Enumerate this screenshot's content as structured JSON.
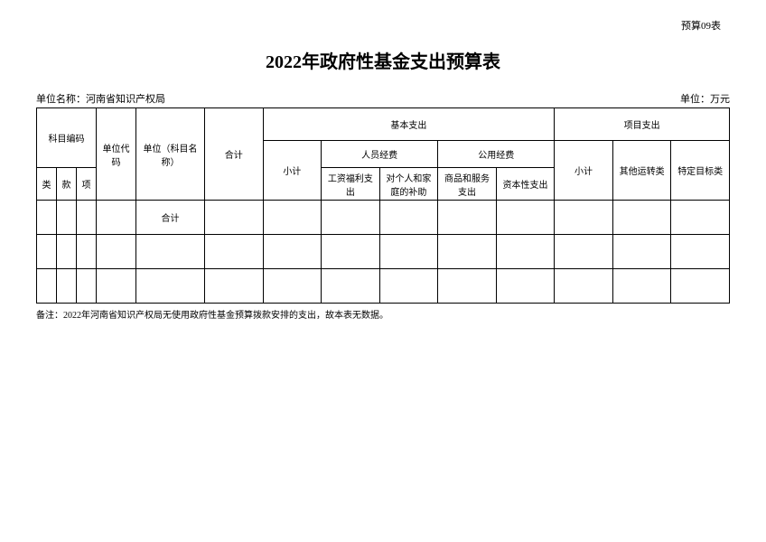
{
  "topLabel": "预算09表",
  "title": "2022年政府性基金支出预算表",
  "unitNameLabel": "单位名称：",
  "unitName": "河南省知识产权局",
  "currencyLabel": "单位：万元",
  "headers": {
    "subjectCode": "科目编码",
    "class": "类",
    "item": "款",
    "sub": "项",
    "unitCode": "单位代码",
    "unitSubjectName": "单位（科目名称）",
    "total": "合计",
    "basicExpense": "基本支出",
    "projectExpense": "项目支出",
    "subtotal": "小计",
    "personnelExpense": "人员经费",
    "publicExpense": "公用经费",
    "salaryWelfare": "工资福利支出",
    "personalFamily": "对个人和家庭的补助",
    "goodsService": "商品和服务支出",
    "capital": "资本性支出",
    "otherTransfer": "其他运转类",
    "specificTarget": "特定目标类"
  },
  "rowLabel": {
    "total": "合计"
  },
  "footnote": "备注：2022年河南省知识产权局无使用政府性基金预算拨款安排的支出，故本表无数据。"
}
